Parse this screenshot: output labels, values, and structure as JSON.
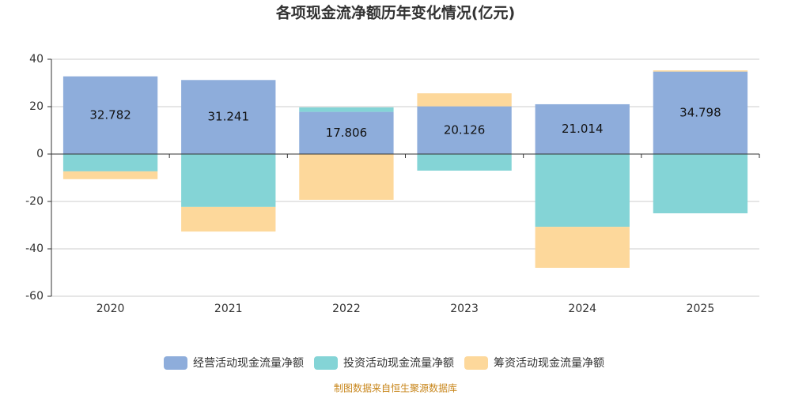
{
  "chart_data": {
    "type": "stacked_bar",
    "title": "各项现金流净额历年变化情况(亿元)",
    "categories": [
      "2020",
      "2021",
      "2022",
      "2023",
      "2024",
      "2025"
    ],
    "series": [
      {
        "name": "经营活动现金流量净额",
        "color": "#8eaddb",
        "values": [
          32.782,
          31.241,
          17.806,
          20.126,
          21.014,
          34.798
        ],
        "show_labels": true
      },
      {
        "name": "投资活动现金流量净额",
        "color": "#84d4d6",
        "values": [
          -7.3,
          -22.3,
          1.9,
          -7,
          -30.7,
          -25
        ]
      },
      {
        "name": "筹资活动现金流量净额",
        "color": "#fdd89b",
        "values": [
          -3.3,
          -10.4,
          -19.3,
          5.5,
          -17.3,
          0.5
        ]
      }
    ],
    "ylim": [
      -60,
      40
    ],
    "yticks": [
      -60,
      -40,
      -20,
      0,
      20,
      40
    ],
    "grid": true,
    "footer": "制图数据来自恒生聚源数据库"
  }
}
